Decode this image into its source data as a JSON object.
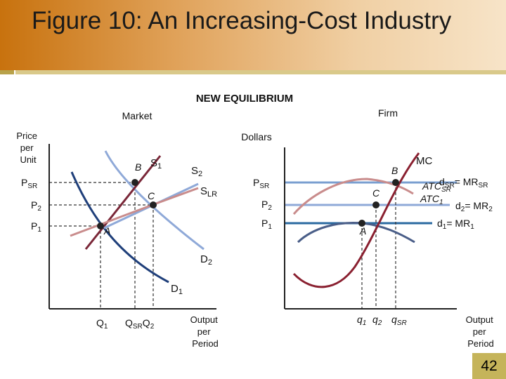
{
  "title": "Figure 10:  An Increasing-Cost Industry",
  "slide_number": "42",
  "heading": "NEW EQUILIBRIUM",
  "market": {
    "panel_label": "Market",
    "y_axis_label": [
      "Price",
      "per",
      "Unit"
    ],
    "x_axis_label": [
      "Output",
      "per",
      "Period"
    ],
    "price_labels": {
      "p_sr": "P",
      "p_sr_sub": "SR",
      "p2": "P",
      "p2_sub": "2",
      "p1": "P",
      "p1_sub": "1"
    },
    "qty_labels": {
      "q1": "Q",
      "q1_sub": "1",
      "qsr": "Q",
      "qsr_sub": "SR",
      "q2": "Q",
      "q2_sub": "2"
    },
    "curve_labels": {
      "s1": "S",
      "s1_sub": "1",
      "s2": "S",
      "s2_sub": "2",
      "slr": "S",
      "slr_sub": "LR",
      "d1": "D",
      "d1_sub": "1",
      "d2": "D",
      "d2_sub": "2"
    },
    "points": {
      "a": "A",
      "b": "B",
      "c": "C"
    }
  },
  "firm": {
    "panel_label": "Firm",
    "y_axis_label": "Dollars",
    "x_axis_label": [
      "Output",
      "per",
      "Period"
    ],
    "price_labels": {
      "p_sr": "P",
      "p_sr_sub": "SR",
      "p2": "P",
      "p2_sub": "2",
      "p1": "P",
      "p1_sub": "1"
    },
    "qty_labels": {
      "q1": "q",
      "q1_sub": "1",
      "q2": "q",
      "q2_sub": "2",
      "qsr": "q",
      "qsr_sub": "SR"
    },
    "curve_labels": {
      "mc": "MC",
      "atc_sr": "ATC",
      "atc_sr_sub": "SR",
      "atc1": "ATC",
      "atc1_sub": "1",
      "d_sr": "d",
      "d_sr_sub": "SR",
      "mr_sr": "= MR",
      "mr_sr_sub": "SR",
      "d2": "d",
      "d2_sub": "2",
      "mr2": "= MR",
      "mr2_sub": "2",
      "d1": "d",
      "d1_sub": "1",
      "mr1": "= MR",
      "mr1_sub": "1"
    },
    "points": {
      "a": "A",
      "b": "B",
      "c": "C"
    }
  },
  "colors": {
    "demand": "#1f3f7a",
    "demand2": "#7a9fd0",
    "supply1": "#7a2738",
    "supply2": "#8fa9d8",
    "slr": "#c98c8c",
    "mc": "#8a2030",
    "atc_sr": "#c98c8c",
    "atc1": "#4a5e88",
    "d_sr": "#7a9fd0",
    "d1": "#2a6aa0"
  }
}
